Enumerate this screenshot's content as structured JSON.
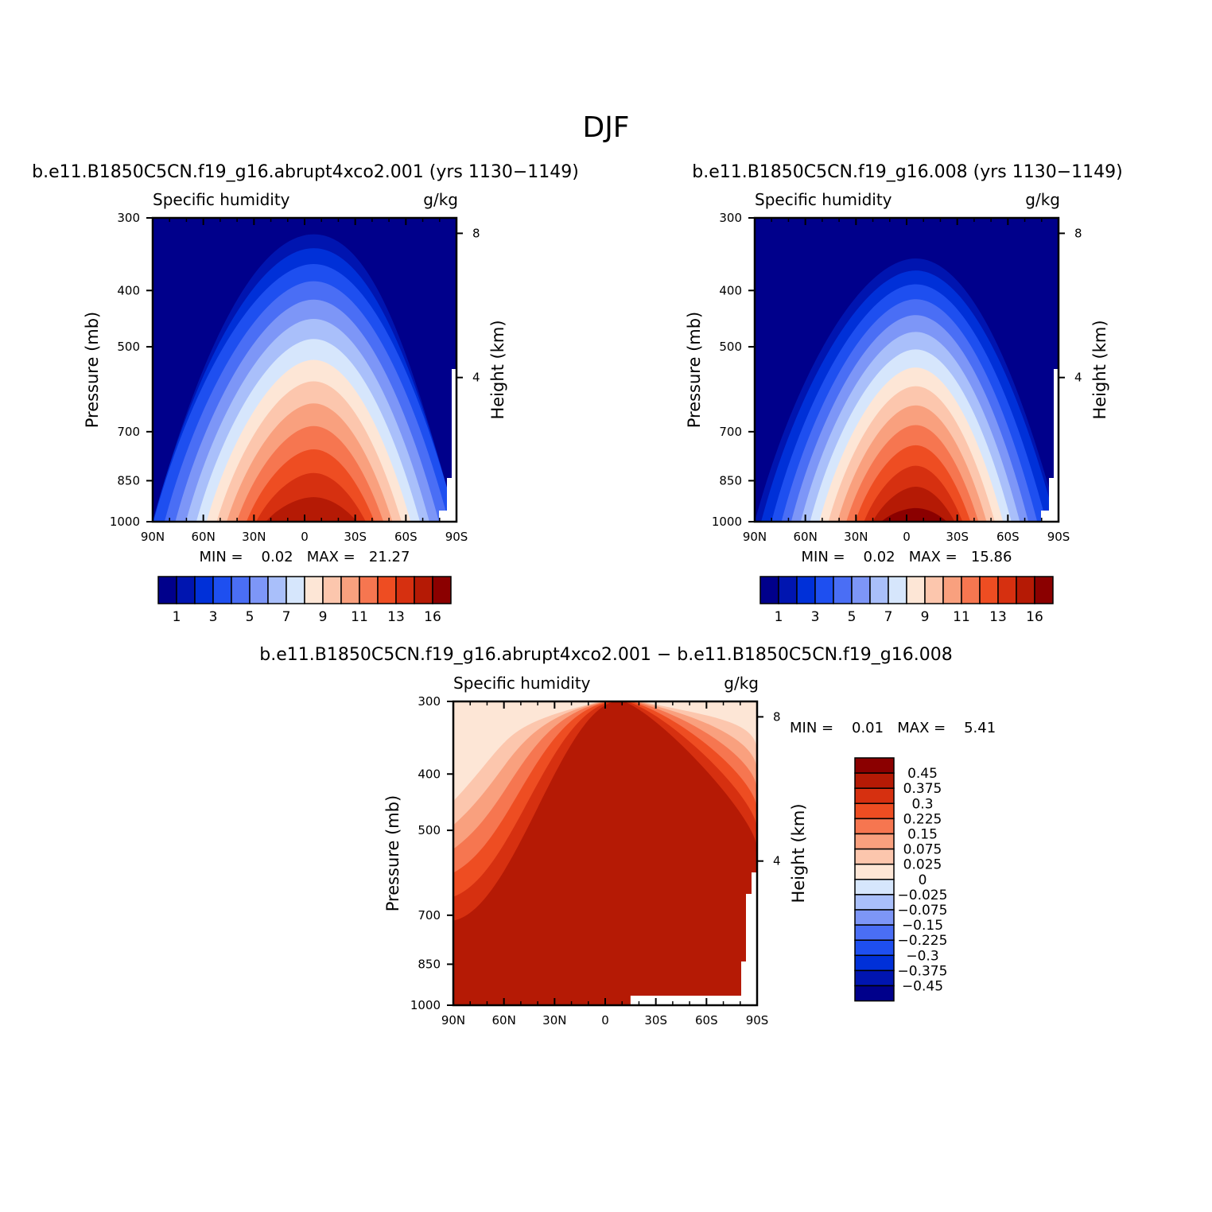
{
  "figure_title": "DJF",
  "colors": {
    "seq": [
      "#00008b",
      "#0015b0",
      "#0030d8",
      "#1e4ff0",
      "#4a6ef5",
      "#7d96f7",
      "#a9bffa",
      "#d6e6fc",
      "#fde6d6",
      "#fcc6ad",
      "#f9a07e",
      "#f67650",
      "#ee4d22",
      "#d63010",
      "#b51a05",
      "#8b0000"
    ],
    "div": [
      "#8b0000",
      "#b51a05",
      "#d63010",
      "#ee4d22",
      "#f67650",
      "#f9a07e",
      "#fcc6ad",
      "#fde6d6",
      "#d6e6fc",
      "#a9bffa",
      "#7d96f7",
      "#4a6ef5",
      "#1e4ff0",
      "#0030d8",
      "#0015b0",
      "#00008b"
    ]
  },
  "chart_data": [
    {
      "id": "case1",
      "type": "contour",
      "title": "b.e11.B1850C5CN.f19_g16.abrupt4xco2.001 (yrs 1130−1149)",
      "left_string": "Specific humidity",
      "right_string": "g/kg",
      "ylabel": "Pressure (mb)",
      "ylabel_right": "Height (km)",
      "x_ticks": [
        "90N",
        "60N",
        "30N",
        "0",
        "30S",
        "60S",
        "90S"
      ],
      "y_ticks": [
        "300",
        "400",
        "500",
        "700",
        "850",
        "1000"
      ],
      "y_ticks_right": [
        "8",
        "4"
      ],
      "min_text": "MIN =    0.02   MAX =   21.27",
      "min": 0.02,
      "max": 21.27,
      "colorbar_labels": [
        "1",
        "3",
        "5",
        "7",
        "9",
        "11",
        "13",
        "16"
      ]
    },
    {
      "id": "case2",
      "type": "contour",
      "title": "b.e11.B1850C5CN.f19_g16.008 (yrs 1130−1149)",
      "left_string": "Specific humidity",
      "right_string": "g/kg",
      "ylabel": "Pressure (mb)",
      "ylabel_right": "Height (km)",
      "x_ticks": [
        "90N",
        "60N",
        "30N",
        "0",
        "30S",
        "60S",
        "90S"
      ],
      "y_ticks": [
        "300",
        "400",
        "500",
        "700",
        "850",
        "1000"
      ],
      "y_ticks_right": [
        "8",
        "4"
      ],
      "min_text": "MIN =    0.02   MAX =   15.86",
      "min": 0.02,
      "max": 15.86,
      "colorbar_labels": [
        "1",
        "3",
        "5",
        "7",
        "9",
        "11",
        "13",
        "16"
      ]
    },
    {
      "id": "diff",
      "type": "contour",
      "title": "b.e11.B1850C5CN.f19_g16.abrupt4xco2.001 − b.e11.B1850C5CN.f19_g16.008",
      "left_string": "Specific humidity",
      "right_string": "g/kg",
      "ylabel": "Pressure (mb)",
      "ylabel_right": "Height (km)",
      "x_ticks": [
        "90N",
        "60N",
        "30N",
        "0",
        "30S",
        "60S",
        "90S"
      ],
      "y_ticks": [
        "300",
        "400",
        "500",
        "700",
        "850",
        "1000"
      ],
      "y_ticks_right": [
        "8",
        "4"
      ],
      "min_text": "MIN =    0.01   MAX =    5.41",
      "min": 0.01,
      "max": 5.41,
      "colorbar_labels": [
        "0.45",
        "0.375",
        "0.3",
        "0.225",
        "0.15",
        "0.075",
        "0.025",
        "0",
        "−0.025",
        "−0.075",
        "−0.15",
        "−0.225",
        "−0.3",
        "−0.375",
        "−0.45"
      ]
    }
  ]
}
